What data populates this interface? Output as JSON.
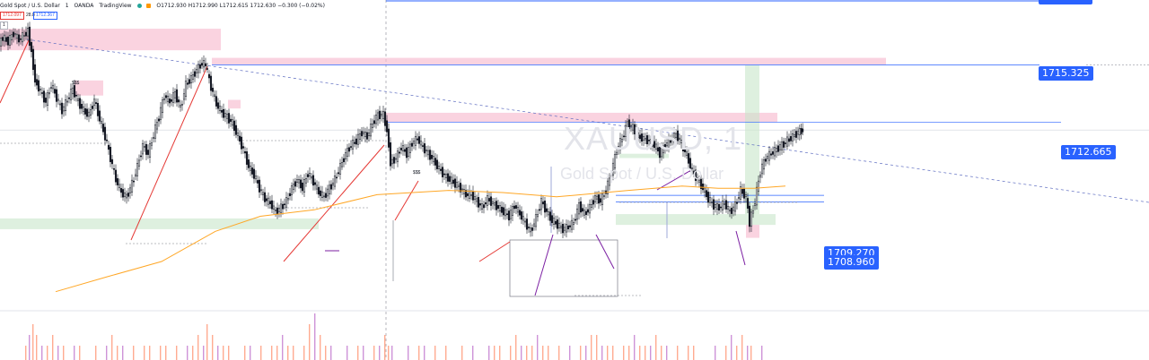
{
  "header": {
    "symbol": "Gold Spot / U.S. Dollar",
    "interval": "1",
    "broker": "OANDA",
    "platform": "TradingView",
    "ohlc": "O1712.930 H1712.990 L1712.615 1712.630 −0.300 (−0.02%)",
    "sell_price": "1712.097",
    "spread": "28.8",
    "buy_price": "1712.367",
    "index_label": "1"
  },
  "watermark": {
    "ticker": "XAUUSD, 1",
    "name": "Gold Spot / U.S. Dollar"
  },
  "price_badges": {
    "top": "",
    "p1715": "1715.325",
    "p1712": "1712.665",
    "p1709": "1709.270",
    "p1708": "1708.960"
  },
  "annotations": {
    "sss1": "$$$",
    "sss2": "$$$"
  },
  "colors": {
    "up": "#131722",
    "down": "#131722",
    "supply_zone": "#f8bbd0",
    "demand_zone": "#c8e6c9",
    "trend_line": "#e53935",
    "moving_average": "#ffa726",
    "badge": "#2962ff"
  },
  "chart_data": {
    "type": "line",
    "title": "XAUUSD, 1",
    "series": [
      {
        "name": "XAUUSD",
        "x_index": [
          0,
          4,
          10,
          16,
          22,
          28,
          32,
          36,
          40,
          46,
          52,
          58,
          64,
          70,
          76,
          82,
          88,
          94,
          100,
          106,
          112,
          118,
          124,
          130,
          136,
          142,
          148,
          154,
          160,
          166,
          172,
          178,
          184,
          190,
          196,
          202,
          208,
          214,
          220,
          226,
          230,
          236,
          242,
          248,
          254,
          260,
          266,
          272,
          278,
          284,
          290,
          296,
          302,
          308,
          314,
          320,
          326,
          332,
          338,
          344,
          350,
          356,
          362,
          368,
          374,
          380,
          386,
          392,
          398,
          404,
          410,
          416,
          422,
          428,
          432,
          436,
          442,
          448,
          454,
          460,
          466,
          472,
          478,
          484,
          490,
          496,
          502,
          508,
          514,
          520,
          526,
          532,
          538,
          544,
          550,
          556,
          562,
          568,
          574,
          580,
          586,
          592,
          598,
          604,
          610,
          616,
          622,
          628,
          634,
          640,
          646,
          652,
          658,
          664,
          670,
          676,
          682,
          688,
          694,
          700,
          706,
          712,
          718,
          724,
          730,
          736,
          742,
          748,
          754,
          760,
          766,
          772,
          778,
          784,
          790,
          796,
          802,
          808,
          814,
          820,
          826,
          832,
          836,
          842,
          848,
          854,
          860,
          866,
          872,
          878,
          884,
          890,
          895
        ],
        "values": [
          1716.3,
          1716.6,
          1716.4,
          1716.8,
          1716.5,
          1716.7,
          1716.9,
          1715.9,
          1714.6,
          1714.1,
          1713.6,
          1714.4,
          1713.8,
          1713.2,
          1713.7,
          1714.2,
          1713.6,
          1713.2,
          1713.0,
          1713.7,
          1712.8,
          1712.0,
          1711.0,
          1710.0,
          1709.4,
          1709.2,
          1709.8,
          1710.6,
          1711.6,
          1711.2,
          1712.1,
          1712.9,
          1713.9,
          1713.6,
          1714.0,
          1713.3,
          1714.4,
          1714.7,
          1715.1,
          1715.4,
          1715.3,
          1714.3,
          1713.5,
          1713.1,
          1712.9,
          1712.6,
          1712.0,
          1711.4,
          1710.6,
          1710.2,
          1709.6,
          1709.1,
          1708.9,
          1708.5,
          1708.7,
          1709.0,
          1709.6,
          1710.0,
          1709.6,
          1710.3,
          1709.9,
          1709.4,
          1709.2,
          1709.6,
          1710.0,
          1710.6,
          1711.2,
          1711.6,
          1711.8,
          1712.2,
          1712.0,
          1712.6,
          1713.0,
          1713.0,
          1712.3,
          1710.8,
          1711.0,
          1711.5,
          1711.2,
          1711.7,
          1711.9,
          1711.5,
          1711.2,
          1710.9,
          1710.5,
          1710.2,
          1710.0,
          1709.8,
          1709.6,
          1709.3,
          1709.3,
          1709.0,
          1708.7,
          1709.1,
          1708.9,
          1708.7,
          1708.5,
          1708.3,
          1708.8,
          1708.4,
          1708.0,
          1707.6,
          1708.2,
          1709.0,
          1708.5,
          1708.1,
          1707.9,
          1707.7,
          1707.8,
          1708.0,
          1708.8,
          1708.4,
          1708.7,
          1709.2,
          1709.0,
          1709.5,
          1710.3,
          1711.4,
          1711.9,
          1712.6,
          1712.4,
          1712.0,
          1711.9,
          1711.8,
          1711.6,
          1711.2,
          1711.6,
          1711.8,
          1712.1,
          1711.7,
          1711.1,
          1710.4,
          1710.0,
          1709.6,
          1709.1,
          1708.8,
          1708.7,
          1708.9,
          1708.5,
          1708.8,
          1709.5,
          1709.2,
          1708.0,
          1709.0,
          1710.4,
          1711.0,
          1711.2,
          1711.4,
          1711.6,
          1711.8,
          1712.0,
          1712.2,
          1712.3
        ],
        "volumes": [
          0,
          0,
          0,
          0,
          0,
          1,
          2,
          3,
          2,
          1,
          1,
          2,
          1,
          1,
          0,
          1,
          1,
          0,
          0,
          1,
          0,
          1,
          2,
          1,
          1,
          0,
          1,
          0,
          1,
          1,
          0,
          1,
          1,
          0,
          1,
          0,
          1,
          1,
          2,
          1,
          3,
          2,
          1,
          1,
          1,
          0,
          0,
          1,
          1,
          0,
          1,
          0,
          1,
          1,
          2,
          1,
          1,
          0,
          1,
          3,
          4,
          2,
          1,
          1,
          0,
          0,
          1,
          0,
          1,
          1,
          0,
          1,
          1,
          2,
          1,
          1,
          0,
          0,
          1,
          0,
          1,
          1,
          0,
          1,
          0,
          1,
          0,
          0,
          1,
          0,
          1,
          0,
          0,
          1,
          1,
          1,
          0,
          1,
          2,
          1,
          1,
          1,
          2,
          1,
          1,
          0,
          1,
          0,
          1,
          0,
          1,
          1,
          2,
          2,
          1,
          1,
          1,
          0,
          1,
          1,
          2,
          1,
          1,
          1,
          2,
          1,
          1,
          0,
          1,
          0,
          1,
          1,
          0,
          0,
          0,
          1,
          0,
          1,
          2,
          1,
          2,
          1,
          1,
          0,
          1,
          0,
          0,
          0,
          0,
          0,
          0,
          0,
          0
        ]
      },
      {
        "name": "MA",
        "x_index": [
          62,
          120,
          180,
          240,
          290,
          350,
          420,
          500,
          560,
          620,
          700,
          760,
          800,
          840,
          875
        ],
        "values": [
          1704.8,
          1705.5,
          1706.2,
          1707.6,
          1708.3,
          1708.6,
          1709.3,
          1709.5,
          1709.4,
          1709.2,
          1709.5,
          1709.7,
          1709.6,
          1709.6,
          1709.7
        ]
      }
    ],
    "ylim": [
      1704.0,
      1718.0
    ],
    "grid": false,
    "zones": [
      {
        "kind": "supply",
        "x1": 0,
        "x2": 246,
        "y_top": 1717.0,
        "y_bottom": 1716.0
      },
      {
        "kind": "supply",
        "x1": 236,
        "x2": 987,
        "y_top": 1715.65,
        "y_bottom": 1715.325
      },
      {
        "kind": "supply",
        "x1": 83,
        "x2": 115,
        "y_top": 1714.6,
        "y_bottom": 1713.9
      },
      {
        "kind": "supply",
        "x1": 254,
        "x2": 268,
        "y_top": 1713.7,
        "y_bottom": 1713.3
      },
      {
        "kind": "supply",
        "x1": 428,
        "x2": 866,
        "y_top": 1713.1,
        "y_bottom": 1712.665
      },
      {
        "kind": "demand",
        "x1": 0,
        "x2": 355,
        "y_top": 1708.2,
        "y_bottom": 1707.7
      },
      {
        "kind": "demand",
        "x1": 690,
        "x2": 745,
        "y_top": 1711.2,
        "y_bottom": 1711.0
      },
      {
        "kind": "demand",
        "x1": 686,
        "x2": 864,
        "y_top": 1708.4,
        "y_bottom": 1707.9
      },
      {
        "kind": "demand",
        "x1": 830,
        "x2": 846,
        "y_top": 1715.3,
        "y_bottom": 1708.4
      },
      {
        "kind": "supply",
        "x1": 831,
        "x2": 846,
        "y_top": 1707.9,
        "y_bottom": 1707.3
      }
    ],
    "levels": [
      1715.325,
      1712.665,
      1709.27,
      1708.96
    ]
  }
}
